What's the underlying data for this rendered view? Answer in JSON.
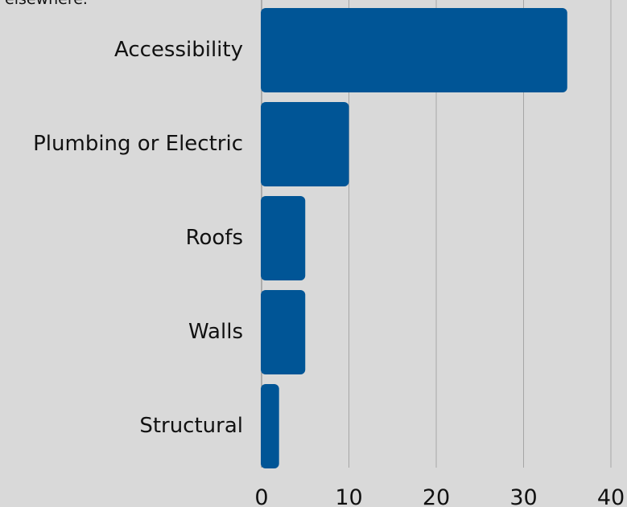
{
  "chart_data": {
    "type": "bar",
    "orientation": "horizontal",
    "clipped_text": "elsewhere.",
    "categories": [
      "Accessibility",
      "Plumbing or Electric",
      "Roofs",
      "Walls",
      "Structural"
    ],
    "values": [
      35,
      10,
      5,
      5,
      2
    ],
    "xlim": [
      0,
      40
    ],
    "x_ticks": [
      "0",
      "10",
      "20",
      "30",
      "40"
    ],
    "grid": "vertical",
    "colors": {
      "bar": "#005596",
      "background": "#d9d9d9",
      "grid": "#a6a6a6",
      "axis": "#7f7f7f",
      "text": "#111111"
    }
  }
}
